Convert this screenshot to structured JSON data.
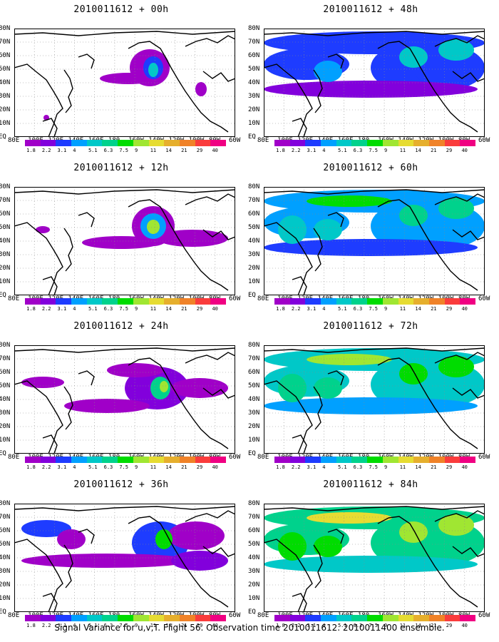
{
  "caption": "Signal Variance for u,v,T. Flight 56. Observation time 2010011612. 2010011400 ensemble.",
  "lat_labels": [
    "80N",
    "70N",
    "60N",
    "50N",
    "40N",
    "30N",
    "20N",
    "10N",
    "EQ"
  ],
  "lon_labels": [
    "80E",
    "100E",
    "120E",
    "140E",
    "160E",
    "180",
    "160W",
    "140W",
    "120W",
    "100W",
    "80W",
    "60W"
  ],
  "colorbar": {
    "levels": [
      "1.8",
      "2.2",
      "3.1",
      "4",
      "5.1",
      "6.3",
      "7.5",
      "9",
      "11",
      "14",
      "21",
      "29",
      "40"
    ],
    "colors": [
      "#a000c8",
      "#8200dc",
      "#1e3cff",
      "#00a0ff",
      "#00c8c8",
      "#00d28c",
      "#00dc00",
      "#a0e632",
      "#e6dc32",
      "#e6af2d",
      "#f08228",
      "#fa3c3c",
      "#f00082"
    ]
  },
  "panels": [
    {
      "id": "p00",
      "title": "2010011612 + 00h",
      "col": 0,
      "row": 0,
      "intensity": 1
    },
    {
      "id": "p12",
      "title": "2010011612 + 12h",
      "col": 0,
      "row": 1,
      "intensity": 2
    },
    {
      "id": "p24",
      "title": "2010011612 + 24h",
      "col": 0,
      "row": 2,
      "intensity": 3
    },
    {
      "id": "p36",
      "title": "2010011612 + 36h",
      "col": 0,
      "row": 3,
      "intensity": 4
    },
    {
      "id": "p48",
      "title": "2010011612 + 48h",
      "col": 1,
      "row": 0,
      "intensity": 5
    },
    {
      "id": "p60",
      "title": "2010011612 + 60h",
      "col": 1,
      "row": 1,
      "intensity": 6
    },
    {
      "id": "p72",
      "title": "2010011612 + 72h",
      "col": 1,
      "row": 2,
      "intensity": 7
    },
    {
      "id": "p84",
      "title": "2010011612 + 84h",
      "col": 1,
      "row": 3,
      "intensity": 8
    }
  ]
}
